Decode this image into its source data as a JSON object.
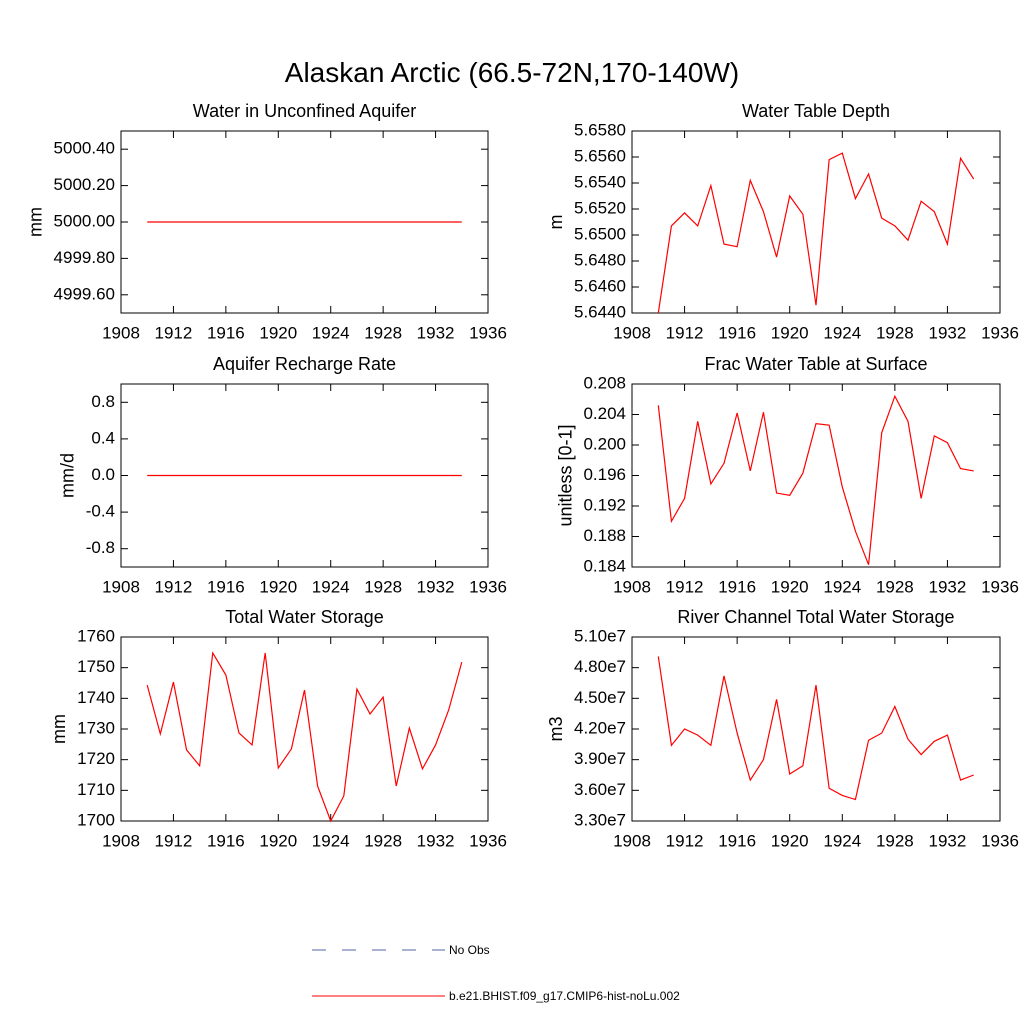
{
  "title": "Alaskan Arctic (66.5-72N,170-140W)",
  "legend": [
    {
      "label": "No Obs",
      "color": "#5566aa",
      "linestyle": "dashed"
    },
    {
      "label": "b.e21.BHIST.f09_g17.CMIP6-hist-noLu.002",
      "color": "#ff0000",
      "linestyle": "solid"
    }
  ],
  "chart_data": [
    {
      "type": "line",
      "title": "Water in Unconfined Aquifer",
      "y_label": "mm",
      "color": "#ff0000",
      "x": [
        1910,
        1911,
        1912,
        1913,
        1914,
        1915,
        1916,
        1917,
        1918,
        1919,
        1920,
        1921,
        1922,
        1923,
        1924,
        1925,
        1926,
        1927,
        1928,
        1929,
        1930,
        1931,
        1932,
        1933,
        1934
      ],
      "values": [
        5000,
        5000,
        5000,
        5000,
        5000,
        5000,
        5000,
        5000,
        5000,
        5000,
        5000,
        5000,
        5000,
        5000,
        5000,
        5000,
        5000,
        5000,
        5000,
        5000,
        5000,
        5000,
        5000,
        5000,
        5000
      ],
      "xlim": [
        1908,
        1936
      ],
      "xticks": [
        1908,
        1912,
        1916,
        1920,
        1924,
        1928,
        1932,
        1936
      ],
      "ylim": [
        4999.5,
        5000.5
      ],
      "yticks": [
        {
          "value": 4999.6,
          "label": "4999.60"
        },
        {
          "value": 4999.8,
          "label": "4999.80"
        },
        {
          "value": 5000,
          "label": "5000.00"
        },
        {
          "value": 5000.2,
          "label": "5000.20"
        },
        {
          "value": 5000.4,
          "label": "5000.40"
        }
      ]
    },
    {
      "type": "line",
      "title": "Water Table Depth",
      "y_label": "m",
      "color": "#ff0000",
      "x": [
        1910,
        1911,
        1912,
        1913,
        1914,
        1915,
        1916,
        1917,
        1918,
        1919,
        1920,
        1921,
        1922,
        1923,
        1924,
        1925,
        1926,
        1927,
        1928,
        1929,
        1930,
        1931,
        1932,
        1933,
        1934
      ],
      "values": [
        5.644,
        5.6507,
        5.6517,
        5.6507,
        5.6538,
        5.6493,
        5.6491,
        5.6542,
        5.6518,
        5.6483,
        5.653,
        5.6516,
        5.6446,
        5.6558,
        5.6563,
        5.6528,
        5.6547,
        5.6513,
        5.6507,
        5.6496,
        5.6526,
        5.6518,
        5.6493,
        5.6559,
        5.6543
      ],
      "xlim": [
        1908,
        1936
      ],
      "xticks": [
        1908,
        1912,
        1916,
        1920,
        1924,
        1928,
        1932,
        1936
      ],
      "ylim": [
        5.644,
        5.658
      ],
      "yticks": [
        {
          "value": 5.644,
          "label": "5.6440"
        },
        {
          "value": 5.646,
          "label": "5.6460"
        },
        {
          "value": 5.648,
          "label": "5.6480"
        },
        {
          "value": 5.65,
          "label": "5.6500"
        },
        {
          "value": 5.652,
          "label": "5.6520"
        },
        {
          "value": 5.654,
          "label": "5.6540"
        },
        {
          "value": 5.656,
          "label": "5.6560"
        },
        {
          "value": 5.658,
          "label": "5.6580"
        }
      ]
    },
    {
      "type": "line",
      "title": "Aquifer Recharge Rate",
      "y_label": "mm/d",
      "color": "#ff0000",
      "x": [
        1910,
        1911,
        1912,
        1913,
        1914,
        1915,
        1916,
        1917,
        1918,
        1919,
        1920,
        1921,
        1922,
        1923,
        1924,
        1925,
        1926,
        1927,
        1928,
        1929,
        1930,
        1931,
        1932,
        1933,
        1934
      ],
      "values": [
        0,
        0,
        0,
        0,
        0,
        0,
        0,
        0,
        0,
        0,
        0,
        0,
        0,
        0,
        0,
        0,
        0,
        0,
        0,
        0,
        0,
        0,
        0,
        0,
        0
      ],
      "xlim": [
        1908,
        1936
      ],
      "xticks": [
        1908,
        1912,
        1916,
        1920,
        1924,
        1928,
        1932,
        1936
      ],
      "ylim": [
        -1,
        1
      ],
      "yticks": [
        -0.8,
        -0.4,
        {
          "value": 0,
          "label": "0.0"
        },
        0.4,
        0.8
      ]
    },
    {
      "type": "line",
      "title": "Frac Water Table at Surface",
      "y_label": "unitless [0-1]",
      "color": "#ff0000",
      "x": [
        1910,
        1911,
        1912,
        1913,
        1914,
        1915,
        1916,
        1917,
        1918,
        1919,
        1920,
        1921,
        1922,
        1923,
        1924,
        1925,
        1926,
        1927,
        1928,
        1929,
        1930,
        1931,
        1932,
        1933,
        1934
      ],
      "values": [
        0.2052,
        0.19,
        0.193,
        0.2031,
        0.1949,
        0.1976,
        0.2042,
        0.1966,
        0.2043,
        0.1937,
        0.1934,
        0.1963,
        0.2028,
        0.2026,
        0.1945,
        0.1887,
        0.1843,
        0.2016,
        0.2064,
        0.2031,
        0.193,
        0.2012,
        0.2003,
        0.1969,
        0.1966
      ],
      "xlim": [
        1908,
        1936
      ],
      "xticks": [
        1908,
        1912,
        1916,
        1920,
        1924,
        1928,
        1932,
        1936
      ],
      "ylim": [
        0.184,
        0.208
      ],
      "yticks": [
        0.184,
        0.188,
        0.192,
        0.196,
        {
          "value": 0.2,
          "label": "0.200"
        },
        0.204,
        0.208
      ]
    },
    {
      "type": "line",
      "title": "Total Water Storage",
      "y_label": "mm",
      "color": "#ff0000",
      "x": [
        1910,
        1911,
        1912,
        1913,
        1914,
        1915,
        1916,
        1917,
        1918,
        1919,
        1920,
        1921,
        1922,
        1923,
        1924,
        1925,
        1926,
        1927,
        1928,
        1929,
        1930,
        1931,
        1932,
        1933,
        1934
      ],
      "values": [
        1744.3,
        1728.4,
        1745.3,
        1723.2,
        1718,
        1754.8,
        1747.6,
        1728.7,
        1724.8,
        1754.8,
        1717.3,
        1723.5,
        1742.7,
        1711.4,
        1700,
        1708.2,
        1743,
        1734.9,
        1740.4,
        1711.4,
        1730.3,
        1717,
        1724.8,
        1736.2,
        1751.8
      ],
      "xlim": [
        1908,
        1936
      ],
      "xticks": [
        1908,
        1912,
        1916,
        1920,
        1924,
        1928,
        1932,
        1936
      ],
      "ylim": [
        1700,
        1760
      ],
      "yticks": [
        1700,
        1710,
        1720,
        1730,
        1740,
        1750,
        1760
      ]
    },
    {
      "type": "line",
      "title": "River Channel Total Water Storage",
      "y_label": "m3",
      "color": "#ff0000",
      "x": [
        1910,
        1911,
        1912,
        1913,
        1914,
        1915,
        1916,
        1917,
        1918,
        1919,
        1920,
        1921,
        1922,
        1923,
        1924,
        1925,
        1926,
        1927,
        1928,
        1929,
        1930,
        1931,
        1932,
        1933,
        1934
      ],
      "values": [
        49100000,
        40400000,
        42000000,
        41400000,
        40400000,
        47200000,
        41600000,
        37000000,
        39000000,
        44900000,
        37600000,
        38400000,
        46300000,
        36200000,
        35500000,
        35100000,
        40900000,
        41600000,
        44200000,
        41000000,
        39500000,
        40800000,
        41400000,
        37000000,
        37500000
      ],
      "xlim": [
        1908,
        1936
      ],
      "xticks": [
        1908,
        1912,
        1916,
        1920,
        1924,
        1928,
        1932,
        1936
      ],
      "ylim": [
        33000000,
        51000000
      ],
      "yticks": [
        {
          "value": 33000000,
          "label": "3.30e7"
        },
        {
          "value": 36000000,
          "label": "3.60e7"
        },
        {
          "value": 39000000,
          "label": "3.90e7"
        },
        {
          "value": 42000000,
          "label": "4.20e7"
        },
        {
          "value": 45000000,
          "label": "4.50e7"
        },
        {
          "value": 48000000,
          "label": "4.80e7"
        },
        {
          "value": 51000000,
          "label": "5.10e7"
        }
      ]
    }
  ]
}
